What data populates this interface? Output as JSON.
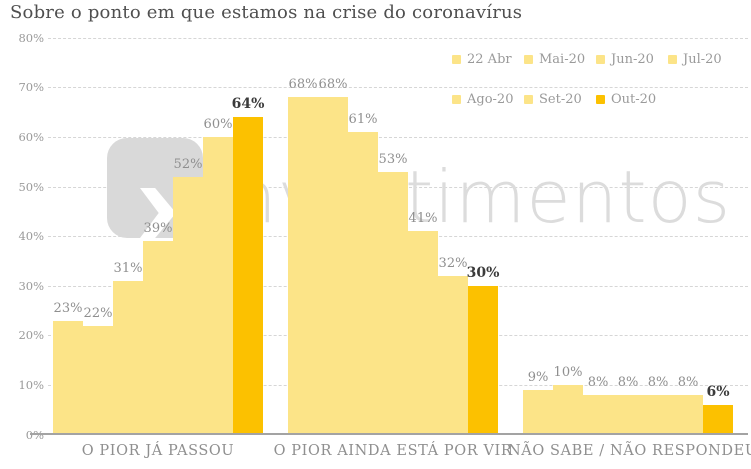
{
  "title": "Sobre o ponto em que estamos na crise do coronavírus",
  "watermark": {
    "text": "investimentos"
  },
  "colors": {
    "bar_default": "#fce488",
    "bar_highlight": "#fcc100",
    "value_label": "#8f8f8f",
    "value_label_highlight": "#3b3b3b",
    "grid_line": "#d6d6d6",
    "axis_line": "#a3a3a3",
    "tick_label": "#9a9a9a",
    "category_label": "#8f8f8f",
    "legend_label": "#9a9a9a",
    "title_text": "#4f4f4f",
    "watermark_text": "#dcdcdc",
    "watermark_logo": "#d9d9d9"
  },
  "chart_data": {
    "type": "bar",
    "title": "Sobre o ponto em que estamos na crise do coronavírus",
    "categories": [
      "O PIOR JÁ PASSOU",
      "O PIOR AINDA ESTÁ POR VIR",
      "NÃO SABE / NÃO RESPONDEU"
    ],
    "series": [
      {
        "name": "22 Abr",
        "values": [
          23,
          68,
          9
        ],
        "highlight": false
      },
      {
        "name": "Mai-20",
        "values": [
          22,
          68,
          10
        ],
        "highlight": false
      },
      {
        "name": "Jun-20",
        "values": [
          31,
          61,
          8
        ],
        "highlight": false
      },
      {
        "name": "Jul-20",
        "values": [
          39,
          53,
          8
        ],
        "highlight": false
      },
      {
        "name": "Ago-20",
        "values": [
          52,
          41,
          8
        ],
        "highlight": false
      },
      {
        "name": "Set-20",
        "values": [
          60,
          32,
          8
        ],
        "highlight": false
      },
      {
        "name": "Out-20",
        "values": [
          64,
          30,
          6
        ],
        "highlight": true
      }
    ],
    "value_suffix": "%",
    "ylim": [
      0,
      80
    ],
    "yticks": [
      "0%",
      "10%",
      "20%",
      "30%",
      "40%",
      "50%",
      "60%",
      "70%",
      "80%"
    ],
    "grid": true,
    "legend_position": "top-right",
    "legend_layout_rows": [
      4,
      3
    ]
  }
}
